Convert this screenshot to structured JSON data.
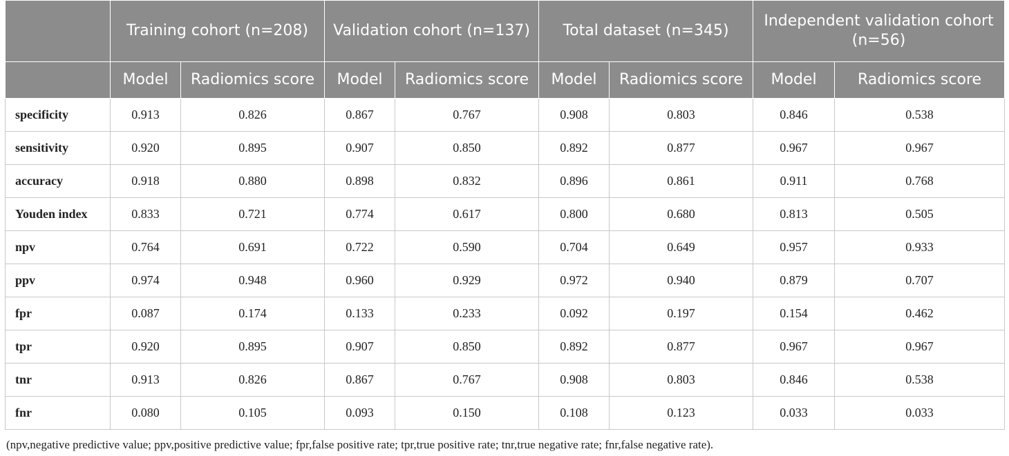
{
  "table": {
    "groups": [
      "Training cohort (n=208)",
      "Validation cohort (n=137)",
      "Total dataset (n=345)",
      "Independent validation cohort (n=56)"
    ],
    "subheaders": [
      "Model",
      "Radiomics score"
    ],
    "rows": [
      {
        "label": "specificity",
        "values": [
          "0.913",
          "0.826",
          "0.867",
          "0.767",
          "0.908",
          "0.803",
          "0.846",
          "0.538"
        ]
      },
      {
        "label": "sensitivity",
        "values": [
          "0.920",
          "0.895",
          "0.907",
          "0.850",
          "0.892",
          "0.877",
          "0.967",
          "0.967"
        ]
      },
      {
        "label": "accuracy",
        "values": [
          "0.918",
          "0.880",
          "0.898",
          "0.832",
          "0.896",
          "0.861",
          "0.911",
          "0.768"
        ]
      },
      {
        "label": "Youden index",
        "values": [
          "0.833",
          "0.721",
          "0.774",
          "0.617",
          "0.800",
          "0.680",
          "0.813",
          "0.505"
        ]
      },
      {
        "label": "npv",
        "values": [
          "0.764",
          "0.691",
          "0.722",
          "0.590",
          "0.704",
          "0.649",
          "0.957",
          "0.933"
        ]
      },
      {
        "label": "ppv",
        "values": [
          "0.974",
          "0.948",
          "0.960",
          "0.929",
          "0.972",
          "0.940",
          "0.879",
          "0.707"
        ]
      },
      {
        "label": "fpr",
        "values": [
          "0.087",
          "0.174",
          "0.133",
          "0.233",
          "0.092",
          "0.197",
          "0.154",
          "0.462"
        ]
      },
      {
        "label": "tpr",
        "values": [
          "0.920",
          "0.895",
          "0.907",
          "0.850",
          "0.892",
          "0.877",
          "0.967",
          "0.967"
        ]
      },
      {
        "label": "tnr",
        "values": [
          "0.913",
          "0.826",
          "0.867",
          "0.767",
          "0.908",
          "0.803",
          "0.846",
          "0.538"
        ]
      },
      {
        "label": "fnr",
        "values": [
          "0.080",
          "0.105",
          "0.093",
          "0.150",
          "0.108",
          "0.123",
          "0.033",
          "0.033"
        ]
      }
    ]
  },
  "footnote": "(npv,negative predictive value; ppv,positive predictive value; fpr,false positive rate; tpr,true positive rate; tnr,true negative rate; fnr,false negative rate)."
}
